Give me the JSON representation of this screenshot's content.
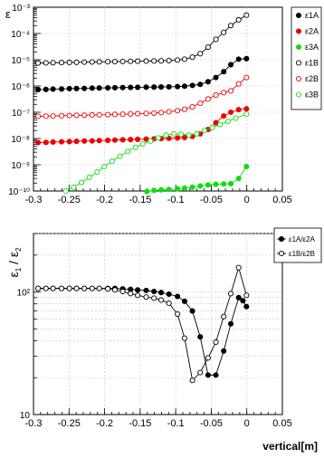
{
  "chart_data": [
    {
      "type": "scatter",
      "ylabel": "ε",
      "xlabel": "",
      "xlim": [
        -0.3,
        0.05
      ],
      "ylim": [
        1e-10,
        0.001
      ],
      "yscale": "log",
      "grid": true,
      "legend_position": "top-right",
      "x_ticks": [
        "-0.3",
        "-0.25",
        "-0.2",
        "-0.15",
        "-0.1",
        "-0.05",
        "0",
        "0.05"
      ],
      "y_ticks": [
        "10⁻¹⁰",
        "10⁻⁹",
        "10⁻⁸",
        "10⁻⁷",
        "10⁻⁶",
        "10⁻⁵",
        "10⁻⁴",
        "10⁻³"
      ],
      "series": [
        {
          "name": "ε1A",
          "color": "#000000",
          "marker": "filled",
          "x": [
            -0.2935,
            -0.2825,
            -0.2725,
            -0.2605,
            -0.2495,
            -0.2395,
            -0.2285,
            -0.2175,
            -0.2075,
            -0.1955,
            -0.1855,
            -0.1745,
            -0.1635,
            -0.1535,
            -0.1415,
            -0.1305,
            -0.1205,
            -0.1095,
            -0.0975,
            -0.0875,
            -0.0765,
            -0.0655,
            -0.0545,
            -0.0435,
            -0.0325,
            -0.0225,
            -0.0115,
            -0.0005
          ],
          "y": [
            7.3e-07,
            7.4e-07,
            7.6e-07,
            7.7e-07,
            7.9e-07,
            8e-07,
            8.1e-07,
            8.3e-07,
            8.4e-07,
            8.5e-07,
            8.6e-07,
            8.7e-07,
            8.8e-07,
            8.9e-07,
            9e-07,
            9.1e-07,
            9.2e-07,
            9.3e-07,
            9.5e-07,
            9.8e-07,
            1.05e-06,
            1.15e-06,
            1.45e-06,
            2.1e-06,
            3.5e-06,
            6.5e-06,
            1.05e-05,
            1.1e-05
          ]
        },
        {
          "name": "ε2A",
          "color": "#ee0000",
          "marker": "filled",
          "x": [
            -0.2935,
            -0.2825,
            -0.2725,
            -0.2605,
            -0.2495,
            -0.2395,
            -0.2285,
            -0.2175,
            -0.2075,
            -0.1955,
            -0.1855,
            -0.1745,
            -0.1635,
            -0.1535,
            -0.1415,
            -0.1305,
            -0.1205,
            -0.1095,
            -0.0975,
            -0.0875,
            -0.0765,
            -0.0655,
            -0.0545,
            -0.0435,
            -0.0325,
            -0.0225,
            -0.0115,
            -0.0005
          ],
          "y": [
            7e-09,
            7.1e-09,
            7.3e-09,
            7.5e-09,
            7.6e-09,
            7.8e-09,
            8e-09,
            8.1e-09,
            8.3e-09,
            8.5e-09,
            8.7e-09,
            8.9e-09,
            9.1e-09,
            9.3e-09,
            9.5e-09,
            9.7e-09,
            9.9e-09,
            1.01e-08,
            1.04e-08,
            1.09e-08,
            1.2e-08,
            1.5e-08,
            2.2e-08,
            4e-08,
            7.2e-08,
            1e-07,
            1.25e-07,
            1.35e-07
          ]
        },
        {
          "name": "ε3A",
          "color": "#11dd11",
          "marker": "filled",
          "x": [
            -0.1405,
            -0.1305,
            -0.1205,
            -0.1095,
            -0.0975,
            -0.0875,
            -0.0765,
            -0.0655,
            -0.0545,
            -0.0435,
            -0.0325,
            -0.0225,
            -0.0115,
            -0.0005
          ],
          "y": [
            9.5e-11,
            1.05e-10,
            1.1e-10,
            1.15e-10,
            1.2e-10,
            1.28e-10,
            1.4e-10,
            1.55e-10,
            1.7e-10,
            1.8e-10,
            1.85e-10,
            1.9e-10,
            3e-10,
            8.5e-10
          ]
        },
        {
          "name": "ε1B",
          "color": "#000000",
          "marker": "open",
          "x": [
            -0.2935,
            -0.2825,
            -0.2725,
            -0.2605,
            -0.2495,
            -0.2395,
            -0.2285,
            -0.2175,
            -0.2075,
            -0.1955,
            -0.1855,
            -0.1745,
            -0.1635,
            -0.1535,
            -0.1415,
            -0.1305,
            -0.1205,
            -0.1095,
            -0.0975,
            -0.0875,
            -0.0765,
            -0.0655,
            -0.0545,
            -0.0435,
            -0.0325,
            -0.0225,
            -0.0115,
            -0.0005
          ],
          "y": [
            7.5e-06,
            7.6e-06,
            7.7e-06,
            7.8e-06,
            7.9e-06,
            8e-06,
            8.1e-06,
            8.2e-06,
            8.3e-06,
            8.4e-06,
            8.5e-06,
            8.6e-06,
            8.7e-06,
            8.8e-06,
            8.9e-06,
            9e-06,
            9.1e-06,
            9.3e-06,
            9.7e-06,
            1.05e-05,
            1.25e-05,
            1.7e-05,
            3e-05,
            6e-05,
            0.00011,
            0.0002,
            0.00033,
            0.0005
          ]
        },
        {
          "name": "ε2B",
          "color": "#ee0000",
          "marker": "open",
          "x": [
            -0.2935,
            -0.2825,
            -0.2725,
            -0.2605,
            -0.2495,
            -0.2395,
            -0.2285,
            -0.2175,
            -0.2075,
            -0.1955,
            -0.1855,
            -0.1745,
            -0.1635,
            -0.1535,
            -0.1415,
            -0.1305,
            -0.1205,
            -0.1095,
            -0.0975,
            -0.0875,
            -0.0765,
            -0.0655,
            -0.0545,
            -0.0435,
            -0.0325,
            -0.0225,
            -0.0115,
            -0.0005
          ],
          "y": [
            7e-08,
            7.1e-08,
            7.2e-08,
            7.4e-08,
            7.5e-08,
            7.6e-08,
            7.7e-08,
            7.9e-08,
            8e-08,
            8.1e-08,
            8.3e-08,
            8.4e-08,
            8.6e-08,
            8.8e-08,
            9e-08,
            9.3e-08,
            9.7e-08,
            1.05e-07,
            1.15e-07,
            1.3e-07,
            1.6e-07,
            2.2e-07,
            3.2e-07,
            4.5e-07,
            5.6e-07,
            6.5e-07,
            1.2e-06,
            2.1e-06
          ]
        },
        {
          "name": "ε3B",
          "color": "#11dd11",
          "marker": "open",
          "x": [
            -0.2545,
            -0.2435,
            -0.2325,
            -0.2215,
            -0.2105,
            -0.2005,
            -0.1895,
            -0.1785,
            -0.1675,
            -0.1565,
            -0.1465,
            -0.1355,
            -0.1245,
            -0.1135,
            -0.1025,
            -0.0925,
            -0.0815,
            -0.0705,
            -0.0595,
            -0.0485,
            -0.0375,
            -0.0265,
            -0.0155,
            -0.0005
          ],
          "y": [
            1e-10,
            1.4e-10,
            2.1e-10,
            3.3e-10,
            5.3e-10,
            8.5e-10,
            1.35e-09,
            2.1e-09,
            3.2e-09,
            4.6e-09,
            6.2e-09,
            8e-09,
            1.05e-08,
            1.35e-08,
            1.5e-08,
            1.45e-08,
            1.35e-08,
            1.5e-08,
            2e-08,
            2.6e-08,
            3.4e-08,
            4.5e-08,
            6e-08,
            8.5e-08
          ]
        }
      ]
    },
    {
      "type": "scatter",
      "ylabel": "ε1 / ε2",
      "xlabel": "vertical[m]",
      "xlim": [
        -0.3,
        0.05
      ],
      "ylim": [
        10,
        300
      ],
      "yscale": "log",
      "grid": true,
      "legend_position": "top-right",
      "x_ticks": [
        "-0.3",
        "-0.25",
        "-0.2",
        "-0.15",
        "-0.1",
        "-0.05",
        "0",
        "0.05"
      ],
      "y_ticks": [
        "10",
        "10²"
      ],
      "series": [
        {
          "name": "ε1A/ε2A",
          "color": "#000000",
          "marker": "filled",
          "x": [
            -0.2935,
            -0.2825,
            -0.2725,
            -0.2605,
            -0.2495,
            -0.2395,
            -0.2285,
            -0.2175,
            -0.2075,
            -0.1955,
            -0.1855,
            -0.1745,
            -0.1635,
            -0.1535,
            -0.1415,
            -0.1305,
            -0.1205,
            -0.1095,
            -0.0975,
            -0.0875,
            -0.0765,
            -0.0655,
            -0.0545,
            -0.0435,
            -0.0325,
            -0.0225,
            -0.0115,
            -0.0055,
            -0.0005
          ],
          "y": [
            107,
            107,
            107,
            107,
            107,
            107,
            107,
            107,
            107,
            107,
            107,
            106,
            105,
            104,
            103,
            101,
            99,
            96,
            92,
            84,
            70,
            43,
            21,
            21,
            33,
            55,
            90,
            85,
            76
          ]
        },
        {
          "name": "ε1B/ε2B",
          "color": "#000000",
          "marker": "open",
          "x": [
            -0.2935,
            -0.2825,
            -0.2725,
            -0.2605,
            -0.2495,
            -0.2395,
            -0.2285,
            -0.2175,
            -0.2075,
            -0.1955,
            -0.1855,
            -0.1745,
            -0.1635,
            -0.1535,
            -0.1415,
            -0.1305,
            -0.1205,
            -0.1095,
            -0.0975,
            -0.0875,
            -0.0765,
            -0.0655,
            -0.0545,
            -0.0435,
            -0.0325,
            -0.0225,
            -0.0115,
            -0.0005
          ],
          "y": [
            107,
            107,
            107,
            107,
            107,
            107,
            107,
            107,
            107,
            106,
            104,
            101,
            97,
            94,
            91,
            89,
            86,
            81,
            66,
            42,
            19,
            22,
            29,
            39,
            63,
            97,
            158,
            94
          ]
        }
      ]
    }
  ]
}
